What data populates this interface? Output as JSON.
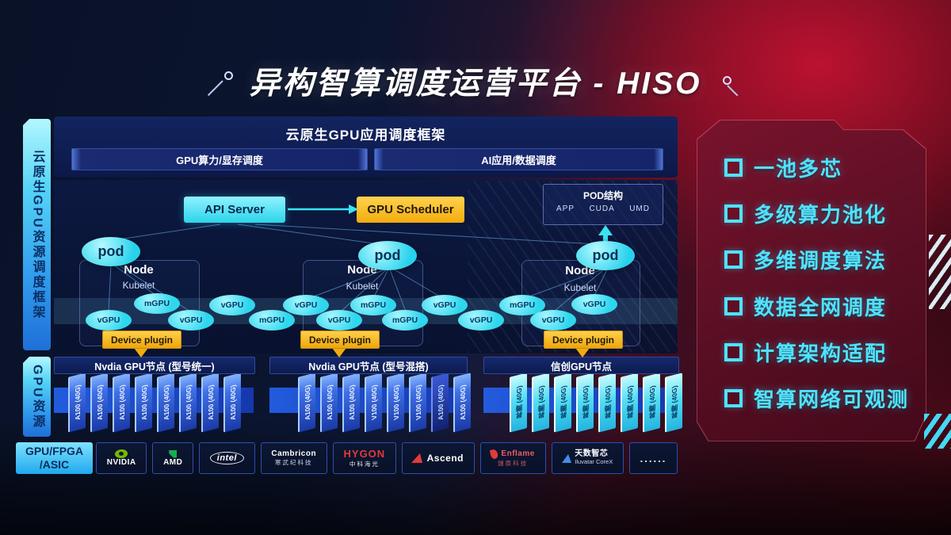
{
  "title": "异构智算调度运营平台 - HISO",
  "sidebar": {
    "framework_label": "云原生GPU资源调度框架",
    "resource_label": "GPU资源"
  },
  "framework": {
    "title": "云原生GPU应用调度框架",
    "bars": [
      "GPU算力/显存调度",
      "AI应用/数据调度"
    ],
    "api_server": "API Server",
    "gpu_scheduler": "GPU Scheduler",
    "pod_struct": {
      "title": "POD结构",
      "items": [
        "APP",
        "CUDA",
        "UMD"
      ]
    },
    "pod_label": "pod",
    "node_label": "Node",
    "kubelet_label": "Kubelet",
    "device_plugin": "Device plugin",
    "gpu_ellipses": [
      "vGPU",
      "mGPU",
      "vGPU",
      "vGPU",
      "mGPU",
      "vGPU",
      "vGPU",
      "mGPU",
      "mGPU",
      "vGPU",
      "vGPU",
      "mGPU",
      "vGPU",
      "vGPU"
    ]
  },
  "gpu_groups": [
    {
      "header": "Nvdia GPU节点 (型号统一)",
      "cards": [
        {
          "label": "A100 (40G)",
          "variant": "blue"
        },
        {
          "label": "A100 (40G)",
          "variant": "blue"
        },
        {
          "label": "A100 (40G)",
          "variant": "blue"
        },
        {
          "label": "A100 (40G)",
          "variant": "blue"
        },
        {
          "label": "A100 (40G)",
          "variant": "blue"
        },
        {
          "label": "A100 (40G)",
          "variant": "blue"
        },
        {
          "label": "A100 (40G)",
          "variant": "blue"
        },
        {
          "label": "A100 (40G)",
          "variant": "blue"
        }
      ]
    },
    {
      "header": "Nvdia GPU节点 (型号混搭)",
      "cards": [
        {
          "label": "A100 (40G)",
          "variant": "blue"
        },
        {
          "label": "A100 (40G)",
          "variant": "blue"
        },
        {
          "label": "A100 (40G)",
          "variant": "blue"
        },
        {
          "label": "V100 (40G)",
          "variant": "blue"
        },
        {
          "label": "V100 (40G)",
          "variant": "blue"
        },
        {
          "label": "V100 (40G)",
          "variant": "blue"
        },
        {
          "label": "A100 (40G)",
          "variant": "navy"
        },
        {
          "label": "A100 (40G)",
          "variant": "blue"
        }
      ]
    },
    {
      "header": "信创GPU节点",
      "cards": [
        {
          "label": "昇腾 (40G)",
          "variant": "cyan"
        },
        {
          "label": "昇腾 (40G)",
          "variant": "cyan"
        },
        {
          "label": "昇腾 (40G)",
          "variant": "cyan"
        },
        {
          "label": "昇腾 (40G)",
          "variant": "cyan"
        },
        {
          "label": "昇腾 (40G)",
          "variant": "cyan"
        },
        {
          "label": "昇腾 (40G)",
          "variant": "cyan"
        },
        {
          "label": "昇腾 (40G)",
          "variant": "cyan"
        },
        {
          "label": "昇腾 (40G)",
          "variant": "cyan"
        }
      ]
    }
  ],
  "vendors": {
    "category_line1": "GPU/FPGA",
    "category_line2": "/ASIC",
    "items": [
      {
        "name": "NVIDIA",
        "sub": "",
        "icon": "nvidia"
      },
      {
        "name": "AMD",
        "sub": "",
        "icon": "amd"
      },
      {
        "name": "intel",
        "sub": "",
        "icon": "intel"
      },
      {
        "name": "Cambricon",
        "sub": "寒武纪科技",
        "icon": "none"
      },
      {
        "name": "HYGON",
        "sub": "中科海光",
        "icon": "hygon"
      },
      {
        "name": "Ascend",
        "sub": "",
        "icon": "ascend"
      },
      {
        "name": "Enflame",
        "sub": "燧原科技",
        "icon": "enflame"
      },
      {
        "name": "天数智芯",
        "sub": "Iluvatar CoreX",
        "icon": "iluvatar"
      },
      {
        "name": "......",
        "sub": "",
        "icon": "dots"
      }
    ]
  },
  "features": [
    "一池多芯",
    "多级算力池化",
    "多维调度算法",
    "数据全网调度",
    "计算架构适配",
    "智算网络可观测"
  ],
  "colors": {
    "accent_cyan": "#3ce4f5",
    "accent_yellow": "#f6b916",
    "panel_red": "#6b1126",
    "nvidia_green": "#76b900",
    "logo_red": "#e23b3b"
  }
}
